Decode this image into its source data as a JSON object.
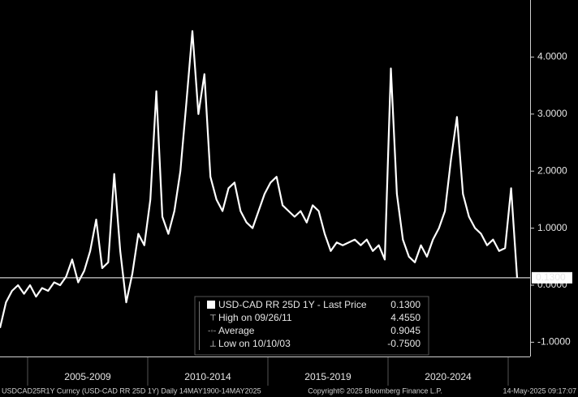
{
  "chart_data": {
    "type": "line",
    "series": [
      {
        "name": "USD-CAD RR 25D 1Y - Last Price",
        "color": "#ffffff",
        "values": [
          -0.75,
          -0.3,
          -0.1,
          0.0,
          -0.15,
          0.0,
          -0.2,
          -0.05,
          -0.1,
          0.05,
          0.0,
          0.15,
          0.45,
          0.05,
          0.25,
          0.6,
          1.15,
          0.3,
          0.4,
          1.95,
          0.6,
          -0.3,
          0.2,
          0.9,
          0.7,
          1.5,
          3.4,
          1.2,
          0.9,
          1.3,
          2.0,
          3.2,
          4.455,
          3.0,
          3.7,
          1.9,
          1.5,
          1.3,
          1.7,
          1.8,
          1.3,
          1.1,
          1.0,
          1.3,
          1.6,
          1.8,
          1.9,
          1.4,
          1.3,
          1.2,
          1.3,
          1.1,
          1.4,
          1.3,
          0.9,
          0.6,
          0.75,
          0.7,
          0.75,
          0.8,
          0.7,
          0.8,
          0.6,
          0.7,
          0.45,
          3.8,
          1.6,
          0.8,
          0.5,
          0.4,
          0.7,
          0.5,
          0.8,
          1.0,
          1.3,
          2.2,
          2.95,
          1.6,
          1.2,
          1.0,
          0.9,
          0.7,
          0.8,
          0.6,
          0.65,
          1.7,
          0.13
        ]
      }
    ],
    "ylim": [
      -1.25,
      5
    ],
    "yticks": [
      {
        "value": -1,
        "label": "-1.0000"
      },
      {
        "value": 0,
        "label": "0.0000"
      },
      {
        "value": 1,
        "label": "1.0000"
      },
      {
        "value": 2,
        "label": "2.0000"
      },
      {
        "value": 3,
        "label": "3.0000"
      },
      {
        "value": 4,
        "label": "4.0000"
      }
    ],
    "periods": [
      "2005-2009",
      "2010-2014",
      "2015-2019",
      "2020-2024"
    ],
    "last_price": {
      "value": 0.13,
      "label": "0.1300"
    },
    "stats": [
      {
        "label": "High on 09/26/11",
        "value": 4.455,
        "value_label": "4.4550"
      },
      {
        "label": "Average",
        "value": 0.9045,
        "value_label": "0.9045"
      },
      {
        "label": "Low on 10/10/03",
        "value": -0.75,
        "value_label": "-0.7500"
      }
    ],
    "footer": {
      "left": "USDCAD25R1Y Curncy (USD-CAD RR 25D 1Y)  Daily 14MAY1900-14MAY2025",
      "center": "Copyright© 2025 Bloomberg Finance L.P.",
      "right": "14-May-2025 09:17:07"
    }
  }
}
